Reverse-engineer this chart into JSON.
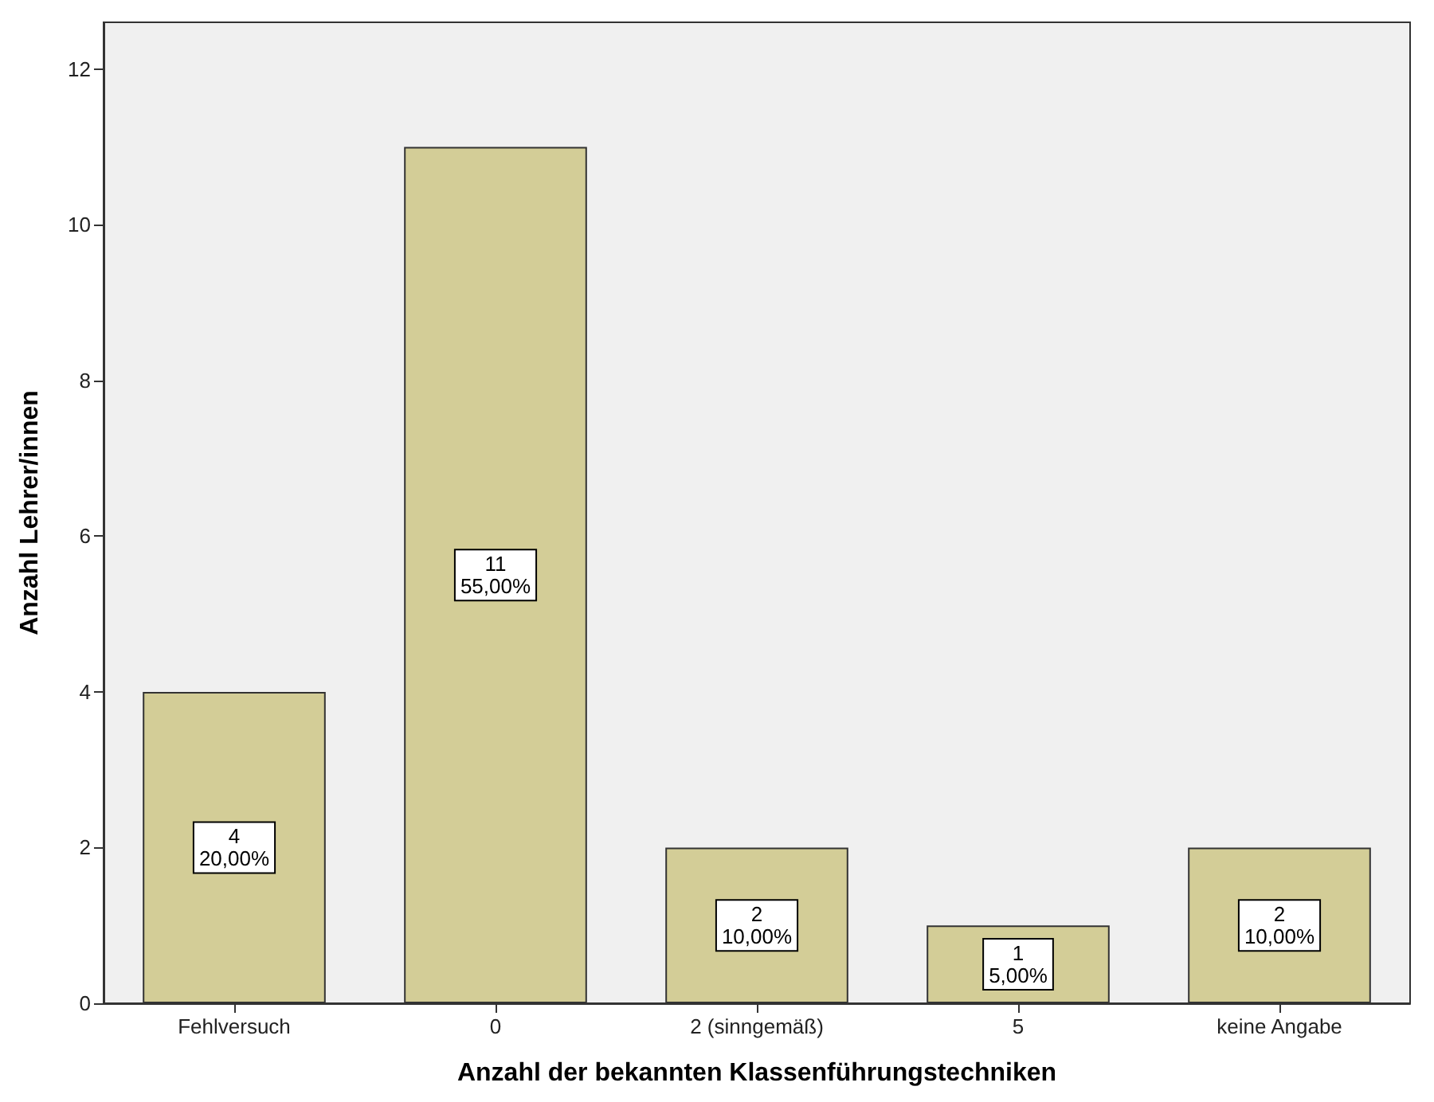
{
  "chart_data": {
    "type": "bar",
    "xlabel": "Anzahl der bekannten Klassenführungstechniken",
    "ylabel": "Anzahl Lehrer/innen",
    "categories": [
      "Fehlversuch",
      "0",
      "2 (sinngemäß)",
      "5",
      "keine Angabe"
    ],
    "values": [
      4,
      11,
      2,
      1,
      2
    ],
    "value_labels": [
      "4\n20,00%",
      "11\n55,00%",
      "2\n10,00%",
      "1\n5,00%",
      "2\n10,00%"
    ],
    "color": "#d3cd97",
    "ylim": [
      0,
      12.6
    ],
    "yticks": [
      0,
      2,
      4,
      6,
      8,
      10,
      12
    ],
    "grid": false
  }
}
